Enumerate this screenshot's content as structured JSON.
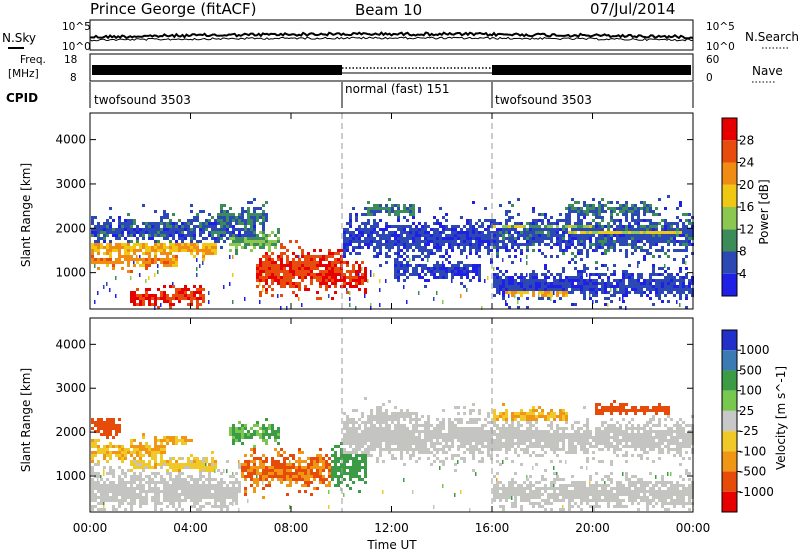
{
  "header": {
    "station": "Prince George (fitACF)",
    "beam": "Beam 10",
    "date": "07/Jul/2014"
  },
  "noise_panel": {
    "left_label": "N.Sky",
    "right_label": "N.Search",
    "left_ticks": [
      "10^5",
      "10^0"
    ],
    "right_ticks": [
      "10^5",
      "10^0"
    ]
  },
  "freq_panel": {
    "left_label_1": "Freq.",
    "left_label_2": "[MHz]",
    "left_ticks": [
      "18",
      "8"
    ],
    "right_label": "Nave",
    "right_ticks": [
      "60",
      "0"
    ]
  },
  "cpid_panel": {
    "label": "CPID",
    "segments": [
      {
        "name": "twofsound 3503",
        "start_hour": 0,
        "end_hour": 10
      },
      {
        "name": "normal (fast) 151",
        "start_hour": 10,
        "end_hour": 16
      },
      {
        "name": "twofsound 3503",
        "start_hour": 16,
        "end_hour": 24
      }
    ]
  },
  "colors": {
    "power": [
      "#1f1fe6",
      "#2c48b4",
      "#3c8c5a",
      "#8cc850",
      "#f0c814",
      "#f08c14",
      "#e84c0c",
      "#e60000"
    ],
    "velocity": [
      "#2130c8",
      "#3c7ab4",
      "#3c9c46",
      "#78c850",
      "#c8c8c8",
      "#f0c828",
      "#f09614",
      "#e64b0a",
      "#e60000"
    ],
    "scatter_gray": "#c4c4c0"
  },
  "chart_data": [
    {
      "type": "heatmap",
      "name": "power",
      "xlabel": "",
      "ylabel": "Slant Range [km]",
      "x_ticks": [
        "00:00",
        "04:00",
        "08:00",
        "12:00",
        "16:00",
        "20:00",
        "00:00"
      ],
      "xlim_hours": [
        0,
        24
      ],
      "y_ticks": [
        "1000",
        "2000",
        "3000",
        "4000"
      ],
      "ylim_km": [
        180,
        4600
      ],
      "colorbar_label": "Power [dB]",
      "colorbar_ticks": [
        "4",
        "8",
        "12",
        "16",
        "20",
        "24",
        "28"
      ],
      "colorbar_range": [
        0,
        32
      ],
      "mode_change_hours": [
        10,
        16
      ],
      "bands": [
        {
          "h0": 0.0,
          "h1": 6.5,
          "r": 2000,
          "w": 280,
          "p": 6
        },
        {
          "h0": 0.0,
          "h1": 5.0,
          "r": 1580,
          "w": 160,
          "p": 20
        },
        {
          "h0": 0.0,
          "h1": 3.5,
          "r": 1300,
          "w": 130,
          "p": 22
        },
        {
          "h0": 1.5,
          "h1": 4.5,
          "r": 480,
          "w": 200,
          "p": 28
        },
        {
          "h0": 5.0,
          "h1": 7.0,
          "r": 2250,
          "w": 220,
          "p": 8
        },
        {
          "h0": 5.5,
          "h1": 7.5,
          "r": 1750,
          "w": 200,
          "p": 12
        },
        {
          "h0": 6.5,
          "h1": 10.0,
          "r": 1100,
          "w": 380,
          "p": 27
        },
        {
          "h0": 9.0,
          "h1": 11.0,
          "r": 950,
          "w": 260,
          "p": 29
        },
        {
          "h0": 10.0,
          "h1": 16.0,
          "r": 1800,
          "w": 380,
          "p": 5
        },
        {
          "h0": 11.0,
          "h1": 13.0,
          "r": 2450,
          "w": 120,
          "p": 9
        },
        {
          "h0": 12.0,
          "h1": 15.5,
          "r": 1100,
          "w": 200,
          "p": 5
        },
        {
          "h0": 16.0,
          "h1": 24.0,
          "r": 1900,
          "w": 380,
          "p": 6
        },
        {
          "h0": 16.0,
          "h1": 20.0,
          "r": 2050,
          "w": 120,
          "p": 14
        },
        {
          "h0": 19.0,
          "h1": 23.5,
          "r": 1950,
          "w": 140,
          "p": 17
        },
        {
          "h0": 19.0,
          "h1": 22.5,
          "r": 2450,
          "w": 150,
          "p": 8
        },
        {
          "h0": 16.5,
          "h1": 19.0,
          "r": 600,
          "w": 120,
          "p": 20
        },
        {
          "h0": 16.0,
          "h1": 24.0,
          "r": 750,
          "w": 280,
          "p": 5
        }
      ]
    },
    {
      "type": "heatmap",
      "name": "velocity",
      "xlabel": "Time UT",
      "ylabel": "Slant Range [km]",
      "x_ticks": [
        "00:00",
        "04:00",
        "08:00",
        "12:00",
        "16:00",
        "20:00",
        "00:00"
      ],
      "xlim_hours": [
        0,
        24
      ],
      "y_ticks": [
        "1000",
        "2000",
        "3000",
        "4000"
      ],
      "ylim_km": [
        180,
        4600
      ],
      "colorbar_label": "Velocity [m s^-1]",
      "colorbar_ticks": [
        "1000",
        "500",
        "100",
        "25",
        "-25",
        "-100",
        "-500",
        "-1000"
      ],
      "mode_change_hours": [
        10,
        16
      ],
      "bands": [
        {
          "h0": 0.0,
          "h1": 1.2,
          "r": 2150,
          "w": 180,
          "v": -200
        },
        {
          "h0": 0.0,
          "h1": 3.0,
          "r": 1600,
          "w": 200,
          "v": -60
        },
        {
          "h0": 2.5,
          "h1": 4.0,
          "r": 1850,
          "w": 90,
          "v": -60
        },
        {
          "h0": 0.0,
          "h1": 6.0,
          "r": 700,
          "w": 400,
          "v": 0
        },
        {
          "h0": 1.5,
          "h1": 5.0,
          "r": 1300,
          "w": 150,
          "v": -40
        },
        {
          "h0": 5.5,
          "h1": 7.5,
          "r": 2000,
          "w": 200,
          "v": 60
        },
        {
          "h0": 6.0,
          "h1": 9.5,
          "r": 1150,
          "w": 330,
          "v": -150
        },
        {
          "h0": 9.5,
          "h1": 11.0,
          "r": 1250,
          "w": 400,
          "v": 150
        },
        {
          "h0": 10.0,
          "h1": 16.0,
          "r": 1900,
          "w": 420,
          "v": 0
        },
        {
          "h0": 11.0,
          "h1": 13.0,
          "r": 2400,
          "w": 150,
          "v": 0
        },
        {
          "h0": 16.0,
          "h1": 24.0,
          "r": 1900,
          "w": 350,
          "v": 0
        },
        {
          "h0": 16.0,
          "h1": 19.0,
          "r": 2400,
          "w": 140,
          "v": -60
        },
        {
          "h0": 20.0,
          "h1": 23.0,
          "r": 2550,
          "w": 100,
          "v": -300
        },
        {
          "h0": 16.0,
          "h1": 24.0,
          "r": 650,
          "w": 300,
          "v": 0
        }
      ]
    }
  ]
}
